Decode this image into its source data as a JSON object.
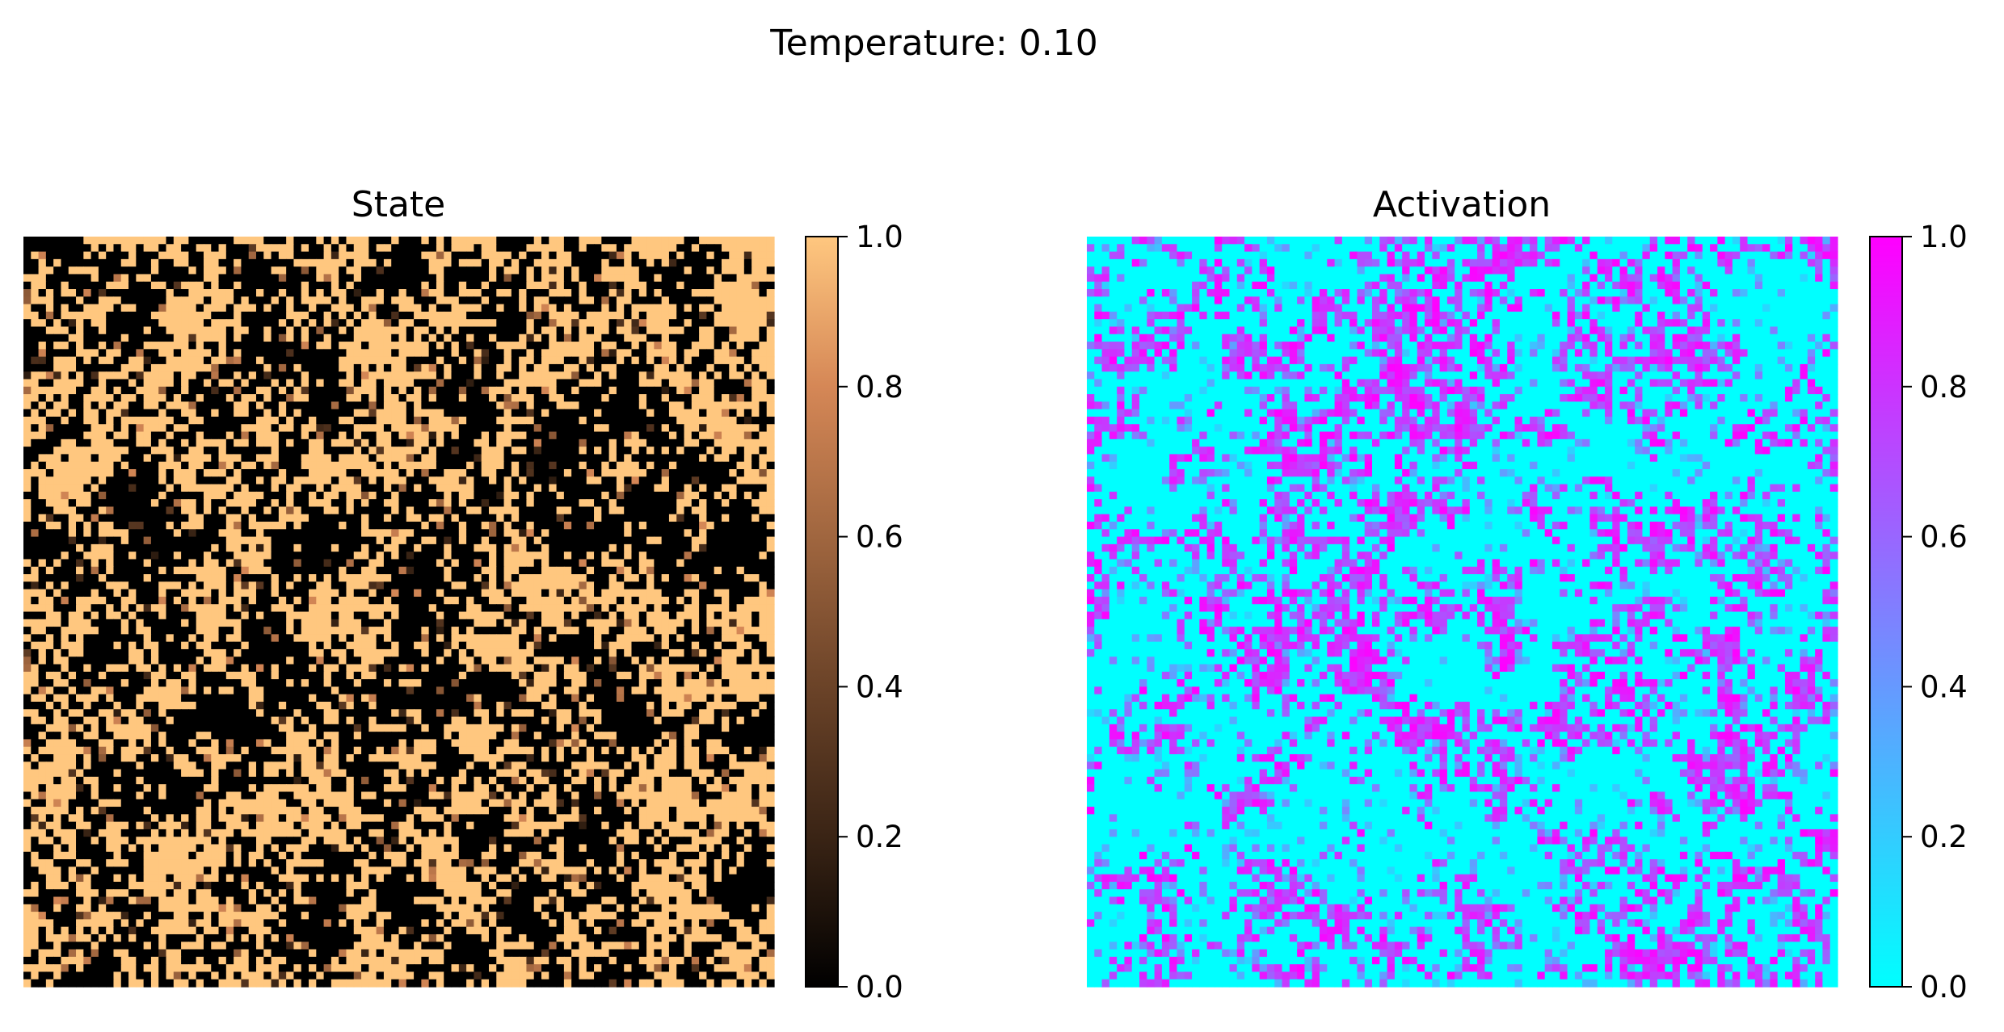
{
  "figure": {
    "suptitle": "Temperature: 0.10"
  },
  "chart_data": [
    {
      "type": "heatmap",
      "title": "State",
      "grid_size": [
        100,
        100
      ],
      "colormap": "copper",
      "colormap_stops": [
        "#000000",
        "#3a2415",
        "#6b4328",
        "#a0663f",
        "#d58756",
        "#ffc77f"
      ],
      "color_range": [
        0,
        1
      ],
      "colorbar_ticks": [
        "0.0",
        "0.2",
        "0.4",
        "0.6",
        "0.8",
        "1.0"
      ],
      "values_description": "binary-like field of 0 (black) and 1 (light copper) cells with a few intermediate values",
      "fraction_high": 0.45,
      "axes_visible": false
    },
    {
      "type": "heatmap",
      "title": "Activation",
      "grid_size": [
        100,
        100
      ],
      "colormap": "cool",
      "colormap_stops": [
        "#00ffff",
        "#ff00ff"
      ],
      "color_range": [
        0,
        1
      ],
      "colorbar_ticks": [
        "0.0",
        "0.2",
        "0.4",
        "0.6",
        "0.8",
        "1.0"
      ],
      "values_description": "mostly 0 (cyan) with scattered high-activation (magenta) clusters and intermediate values",
      "fraction_high": 0.3,
      "axes_visible": false
    }
  ]
}
